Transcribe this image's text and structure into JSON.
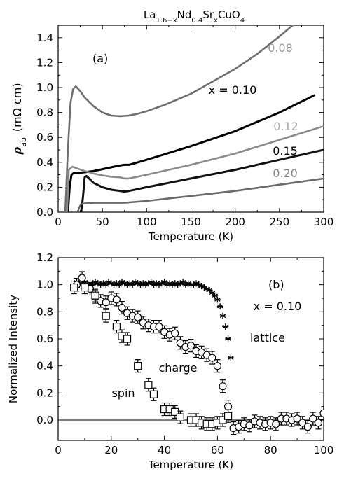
{
  "figure": {
    "title_parts": [
      {
        "text": "La",
        "sub": false
      },
      {
        "text": "1.6−x",
        "sub": true
      },
      {
        "text": "Nd",
        "sub": false
      },
      {
        "text": "0.4",
        "sub": true
      },
      {
        "text": "Sr",
        "sub": false
      },
      {
        "text": "x",
        "sub": true
      },
      {
        "text": "CuO",
        "sub": false
      },
      {
        "text": "4",
        "sub": true
      }
    ]
  },
  "chart_data": [
    {
      "type": "line",
      "panel_label": "(a)",
      "xlabel": "Temperature (K)",
      "ylabel": "ρ",
      "ylabel_sub": "ab",
      "ylabel_unit": "(mΩ cm)",
      "xlim": [
        0,
        300
      ],
      "ylim": [
        0,
        1.5
      ],
      "xticks": [
        0,
        50,
        100,
        150,
        200,
        250,
        300
      ],
      "yticks": [
        0.0,
        0.2,
        0.4,
        0.6,
        0.8,
        1.0,
        1.2,
        1.4
      ],
      "series": [
        {
          "name": "0.08",
          "color": "#6e6e6e",
          "label_color": "#999999",
          "x": [
            8,
            11,
            14,
            17,
            20,
            25,
            30,
            40,
            50,
            60,
            70,
            80,
            90,
            100,
            120,
            150,
            175,
            200,
            225,
            250,
            265
          ],
          "y": [
            0.0,
            0.5,
            0.88,
            0.99,
            1.01,
            0.97,
            0.92,
            0.85,
            0.8,
            0.775,
            0.77,
            0.775,
            0.79,
            0.81,
            0.86,
            0.95,
            1.05,
            1.15,
            1.27,
            1.41,
            1.5
          ]
        },
        {
          "name": "x  =  0.10",
          "color": "#000000",
          "label_color": "#000000",
          "x": [
            11,
            13,
            15,
            18,
            22,
            30,
            40,
            50,
            60,
            70,
            75,
            80,
            100,
            150,
            200,
            250,
            290
          ],
          "y": [
            0.0,
            0.2,
            0.3,
            0.315,
            0.315,
            0.32,
            0.33,
            0.345,
            0.36,
            0.375,
            0.38,
            0.38,
            0.42,
            0.53,
            0.65,
            0.8,
            0.94
          ]
        },
        {
          "name": "0.12",
          "color": "#8a8a8a",
          "label_color": "#aaaaaa",
          "x": [
            10,
            12,
            16,
            20,
            30,
            40,
            50,
            60,
            70,
            75,
            80,
            100,
            150,
            200,
            250,
            300
          ],
          "y": [
            0.0,
            0.34,
            0.365,
            0.355,
            0.33,
            0.31,
            0.295,
            0.285,
            0.28,
            0.27,
            0.27,
            0.3,
            0.38,
            0.47,
            0.58,
            0.69
          ]
        },
        {
          "name": "0.15",
          "color": "#111111",
          "label_color": "#000000",
          "x": [
            26,
            28,
            30,
            32,
            35,
            40,
            50,
            60,
            70,
            75,
            80,
            100,
            150,
            200,
            250,
            300
          ],
          "y": [
            0.0,
            0.12,
            0.28,
            0.29,
            0.27,
            0.235,
            0.2,
            0.18,
            0.17,
            0.165,
            0.17,
            0.2,
            0.27,
            0.34,
            0.42,
            0.5
          ]
        },
        {
          "name": "0.20",
          "color": "#6a6a6a",
          "label_color": "#888888",
          "x": [
            22,
            24,
            26,
            30,
            40,
            50,
            75,
            100,
            150,
            200,
            250,
            300
          ],
          "y": [
            0.0,
            0.04,
            0.065,
            0.07,
            0.075,
            0.075,
            0.075,
            0.09,
            0.13,
            0.17,
            0.22,
            0.27
          ]
        }
      ]
    },
    {
      "type": "scatter",
      "panel_label": "(b)",
      "annotation": "x  =  0.10",
      "xlabel": "Temperature (K)",
      "ylabel": "Normalized Intensity",
      "xlim": [
        0,
        100
      ],
      "ylim": [
        -0.15,
        1.2
      ],
      "xticks": [
        0,
        20,
        40,
        60,
        80,
        100
      ],
      "yticks": [
        0.0,
        0.2,
        0.4,
        0.6,
        0.8,
        1.0,
        1.2
      ],
      "series": [
        {
          "name": "lattice",
          "marker": "asterisk",
          "x": [
            7,
            8,
            9,
            10,
            11,
            12,
            13,
            14,
            15,
            16,
            17,
            18,
            19,
            20,
            21,
            22,
            23,
            24,
            25,
            26,
            27,
            28,
            29,
            30,
            31,
            32,
            33,
            34,
            35,
            36,
            37,
            38,
            39,
            40,
            41,
            42,
            43,
            44,
            45,
            46,
            47,
            48,
            49,
            50,
            51,
            52,
            53,
            54,
            55,
            56,
            57,
            58,
            59,
            60,
            61,
            62,
            63,
            64,
            65
          ],
          "y": [
            1.02,
            1.0,
            1.01,
            1.02,
            1.0,
            1.01,
            1.0,
            1.02,
            1.01,
            1.0,
            1.01,
            1.0,
            1.02,
            1.01,
            1.0,
            1.01,
            1.0,
            1.02,
            1.01,
            1.0,
            1.01,
            1.0,
            1.02,
            1.01,
            1.0,
            1.01,
            1.0,
            1.01,
            1.02,
            1.0,
            1.01,
            1.0,
            1.01,
            1.02,
            1.0,
            1.01,
            1.0,
            1.01,
            1.0,
            1.01,
            1.02,
            1.0,
            1.01,
            1.0,
            1.0,
            1.01,
            1.0,
            0.99,
            0.98,
            0.97,
            0.96,
            0.94,
            0.92,
            0.89,
            0.84,
            0.77,
            0.69,
            0.6,
            0.46
          ]
        },
        {
          "name": "charge",
          "marker": "circle",
          "x": [
            7,
            9,
            12,
            14,
            16,
            18,
            20,
            22,
            24,
            26,
            28,
            30,
            32,
            34,
            36,
            38,
            40,
            42,
            44,
            46,
            48,
            50,
            52,
            54,
            56,
            58,
            60,
            62,
            64,
            66,
            68,
            70,
            72,
            74,
            76,
            78,
            80,
            82,
            84,
            86,
            88,
            90,
            92,
            94,
            96,
            98,
            100
          ],
          "y": [
            1.0,
            1.05,
            0.97,
            0.91,
            0.88,
            0.87,
            0.9,
            0.89,
            0.83,
            0.79,
            0.77,
            0.76,
            0.72,
            0.7,
            0.69,
            0.69,
            0.65,
            0.63,
            0.64,
            0.57,
            0.54,
            0.55,
            0.51,
            0.5,
            0.48,
            0.46,
            0.4,
            0.25,
            0.1,
            -0.06,
            -0.05,
            -0.03,
            -0.04,
            -0.01,
            -0.02,
            -0.03,
            -0.02,
            -0.03,
            0.01,
            0.01,
            0.0,
            0.01,
            -0.02,
            -0.05,
            0.01,
            -0.02,
            0.05
          ]
        },
        {
          "name": "spin",
          "marker": "square",
          "x": [
            6,
            10,
            14,
            18,
            22,
            24,
            26,
            30,
            34,
            36,
            40,
            42,
            44,
            46,
            50,
            52,
            54,
            56,
            58,
            60,
            62,
            64
          ],
          "y": [
            0.98,
            0.98,
            0.92,
            0.77,
            0.69,
            0.62,
            0.6,
            0.4,
            0.26,
            0.19,
            0.08,
            0.08,
            0.06,
            0.02,
            0.0,
            0.0,
            -0.02,
            -0.03,
            -0.03,
            -0.02,
            0.0,
            0.03
          ]
        }
      ]
    }
  ]
}
